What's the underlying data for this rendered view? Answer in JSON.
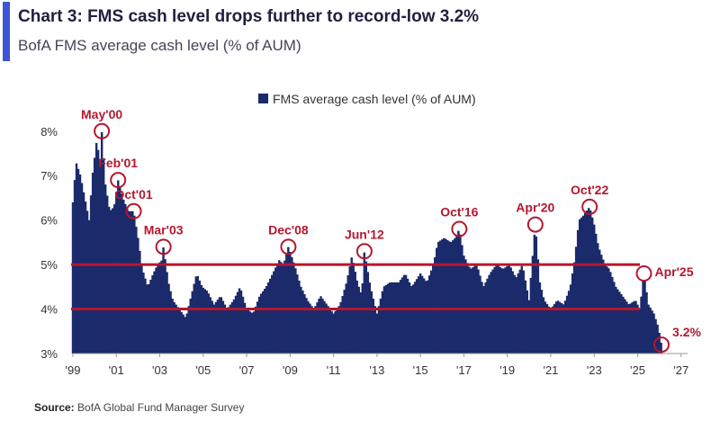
{
  "header": {
    "title": "Chart 3: FMS cash level drops further to record-low 3.2%",
    "subtitle": "BofA FMS average cash level (% of AUM)"
  },
  "source": {
    "label": "Source:",
    "text": "BofA Global Fund Manager Survey"
  },
  "colors": {
    "bar": "#1b2a6b",
    "annotation": "#b5172f",
    "accent": "#3a56d6",
    "threshold_line": "#b5172f"
  },
  "chart_data": {
    "type": "bar",
    "title": "",
    "xlabel": "",
    "ylabel": "",
    "ylim": [
      3,
      8.4
    ],
    "xlim": [
      1999.0,
      2027.3
    ],
    "grid": false,
    "legend": {
      "position": "top-center",
      "entries": [
        "FMS average cash level (% of AUM)"
      ]
    },
    "y_ticks": [
      {
        "value": 3,
        "label": "3%"
      },
      {
        "value": 4,
        "label": "4%"
      },
      {
        "value": 5,
        "label": "5%"
      },
      {
        "value": 6,
        "label": "6%"
      },
      {
        "value": 7,
        "label": "7%"
      },
      {
        "value": 8,
        "label": "8%"
      }
    ],
    "x_ticks": [
      {
        "value": 1999,
        "label": "'99"
      },
      {
        "value": 2001,
        "label": "'01"
      },
      {
        "value": 2003,
        "label": "'03"
      },
      {
        "value": 2005,
        "label": "'05"
      },
      {
        "value": 2007,
        "label": "'07"
      },
      {
        "value": 2009,
        "label": "'09"
      },
      {
        "value": 2011,
        "label": "'11"
      },
      {
        "value": 2013,
        "label": "'13"
      },
      {
        "value": 2015,
        "label": "'15"
      },
      {
        "value": 2017,
        "label": "'17"
      },
      {
        "value": 2019,
        "label": "'19"
      },
      {
        "value": 2021,
        "label": "'21"
      },
      {
        "value": 2023,
        "label": "'23"
      },
      {
        "value": 2025,
        "label": "'25"
      },
      {
        "value": 2027,
        "label": "'27"
      }
    ],
    "threshold_lines": [
      5.0,
      4.0
    ],
    "anchors": [
      [
        1999.0,
        6.4
      ],
      [
        1999.15,
        7.3
      ],
      [
        1999.35,
        7.0
      ],
      [
        1999.55,
        6.5
      ],
      [
        1999.75,
        6.0
      ],
      [
        1999.9,
        7.0
      ],
      [
        2000.1,
        7.8
      ],
      [
        2000.25,
        7.3
      ],
      [
        2000.33,
        8.0
      ],
      [
        2000.5,
        6.8
      ],
      [
        2000.7,
        6.2
      ],
      [
        2000.9,
        6.3
      ],
      [
        2001.08,
        6.9
      ],
      [
        2001.3,
        6.5
      ],
      [
        2001.55,
        6.2
      ],
      [
        2001.8,
        6.2
      ],
      [
        2002.0,
        5.6
      ],
      [
        2002.2,
        4.9
      ],
      [
        2002.45,
        4.5
      ],
      [
        2002.7,
        4.8
      ],
      [
        2002.9,
        5.0
      ],
      [
        2003.1,
        5.1
      ],
      [
        2003.17,
        5.4
      ],
      [
        2003.4,
        4.6
      ],
      [
        2003.6,
        4.2
      ],
      [
        2003.9,
        4.0
      ],
      [
        2004.2,
        3.8
      ],
      [
        2004.5,
        4.4
      ],
      [
        2004.7,
        4.8
      ],
      [
        2004.95,
        4.5
      ],
      [
        2005.2,
        4.4
      ],
      [
        2005.5,
        4.1
      ],
      [
        2005.8,
        4.3
      ],
      [
        2006.1,
        4.0
      ],
      [
        2006.4,
        4.2
      ],
      [
        2006.7,
        4.5
      ],
      [
        2007.0,
        4.0
      ],
      [
        2007.3,
        3.9
      ],
      [
        2007.6,
        4.3
      ],
      [
        2007.9,
        4.5
      ],
      [
        2008.2,
        4.8
      ],
      [
        2008.5,
        5.1
      ],
      [
        2008.7,
        5.0
      ],
      [
        2008.92,
        5.4
      ],
      [
        2009.2,
        5.0
      ],
      [
        2009.5,
        4.5
      ],
      [
        2009.8,
        4.2
      ],
      [
        2010.1,
        4.0
      ],
      [
        2010.4,
        4.3
      ],
      [
        2010.7,
        4.1
      ],
      [
        2011.0,
        3.9
      ],
      [
        2011.3,
        4.1
      ],
      [
        2011.6,
        4.6
      ],
      [
        2011.85,
        5.2
      ],
      [
        2012.1,
        4.6
      ],
      [
        2012.3,
        4.3
      ],
      [
        2012.42,
        5.3
      ],
      [
        2012.7,
        4.5
      ],
      [
        2013.0,
        3.9
      ],
      [
        2013.3,
        4.5
      ],
      [
        2013.6,
        4.6
      ],
      [
        2014.0,
        4.6
      ],
      [
        2014.3,
        4.8
      ],
      [
        2014.6,
        4.5
      ],
      [
        2015.0,
        4.8
      ],
      [
        2015.3,
        4.6
      ],
      [
        2015.6,
        5.0
      ],
      [
        2015.8,
        5.5
      ],
      [
        2016.1,
        5.6
      ],
      [
        2016.4,
        5.5
      ],
      [
        2016.6,
        5.6
      ],
      [
        2016.79,
        5.8
      ],
      [
        2017.0,
        5.2
      ],
      [
        2017.3,
        4.9
      ],
      [
        2017.6,
        5.0
      ],
      [
        2017.9,
        4.5
      ],
      [
        2018.2,
        4.8
      ],
      [
        2018.5,
        5.0
      ],
      [
        2018.8,
        4.9
      ],
      [
        2019.1,
        5.0
      ],
      [
        2019.4,
        4.7
      ],
      [
        2019.7,
        5.0
      ],
      [
        2020.0,
        4.2
      ],
      [
        2020.15,
        5.1
      ],
      [
        2020.29,
        5.9
      ],
      [
        2020.5,
        4.6
      ],
      [
        2020.7,
        4.2
      ],
      [
        2021.0,
        4.0
      ],
      [
        2021.3,
        4.2
      ],
      [
        2021.6,
        4.1
      ],
      [
        2021.9,
        4.5
      ],
      [
        2022.1,
        5.1
      ],
      [
        2022.3,
        6.0
      ],
      [
        2022.5,
        6.1
      ],
      [
        2022.79,
        6.3
      ],
      [
        2023.0,
        5.9
      ],
      [
        2023.2,
        5.4
      ],
      [
        2023.5,
        5.0
      ],
      [
        2023.7,
        4.9
      ],
      [
        2024.0,
        4.5
      ],
      [
        2024.3,
        4.3
      ],
      [
        2024.6,
        4.1
      ],
      [
        2024.9,
        4.2
      ],
      [
        2025.1,
        4.0
      ],
      [
        2025.29,
        4.8
      ],
      [
        2025.5,
        4.1
      ],
      [
        2025.75,
        3.9
      ],
      [
        2025.95,
        3.6
      ],
      [
        2026.1,
        3.2
      ]
    ],
    "callouts": [
      {
        "label": "May'00",
        "x": 2000.33,
        "y": 8.0,
        "label_side": "top"
      },
      {
        "label": "Feb'01",
        "x": 2001.08,
        "y": 6.9,
        "label_side": "top"
      },
      {
        "label": "Oct'01",
        "x": 2001.8,
        "y": 6.2,
        "label_side": "top"
      },
      {
        "label": "Mar'03",
        "x": 2003.17,
        "y": 5.4,
        "label_side": "top"
      },
      {
        "label": "Dec'08",
        "x": 2008.92,
        "y": 5.4,
        "label_side": "top"
      },
      {
        "label": "Jun'12",
        "x": 2012.42,
        "y": 5.3,
        "label_side": "top"
      },
      {
        "label": "Oct'16",
        "x": 2016.79,
        "y": 5.8,
        "label_side": "top"
      },
      {
        "label": "Apr'20",
        "x": 2020.29,
        "y": 5.9,
        "label_side": "top"
      },
      {
        "label": "Oct'22",
        "x": 2022.79,
        "y": 6.3,
        "label_side": "top"
      },
      {
        "label": "Apr'25",
        "x": 2025.29,
        "y": 4.8,
        "label_side": "right"
      },
      {
        "label": "3.2%",
        "x": 2026.1,
        "y": 3.2,
        "label_side": "right"
      }
    ]
  }
}
